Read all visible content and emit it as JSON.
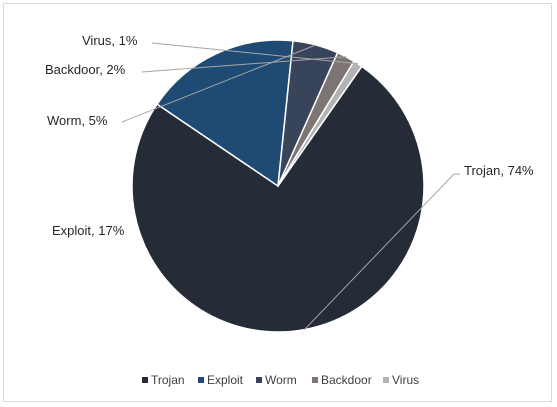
{
  "chart_data": {
    "type": "pie",
    "categories": [
      "Trojan",
      "Exploit",
      "Worm",
      "Backdoor",
      "Virus"
    ],
    "values": [
      74,
      17,
      5,
      2,
      1
    ],
    "data_labels": [
      "Trojan, 74%",
      "Exploit, 17%",
      "Worm, 5%",
      "Backdoor, 2%",
      "Virus, 1%"
    ],
    "colors": [
      "#252c38",
      "#1f4a73",
      "#38445a",
      "#7d7574",
      "#b3b3b3"
    ],
    "legend_position": "bottom",
    "title": ""
  }
}
